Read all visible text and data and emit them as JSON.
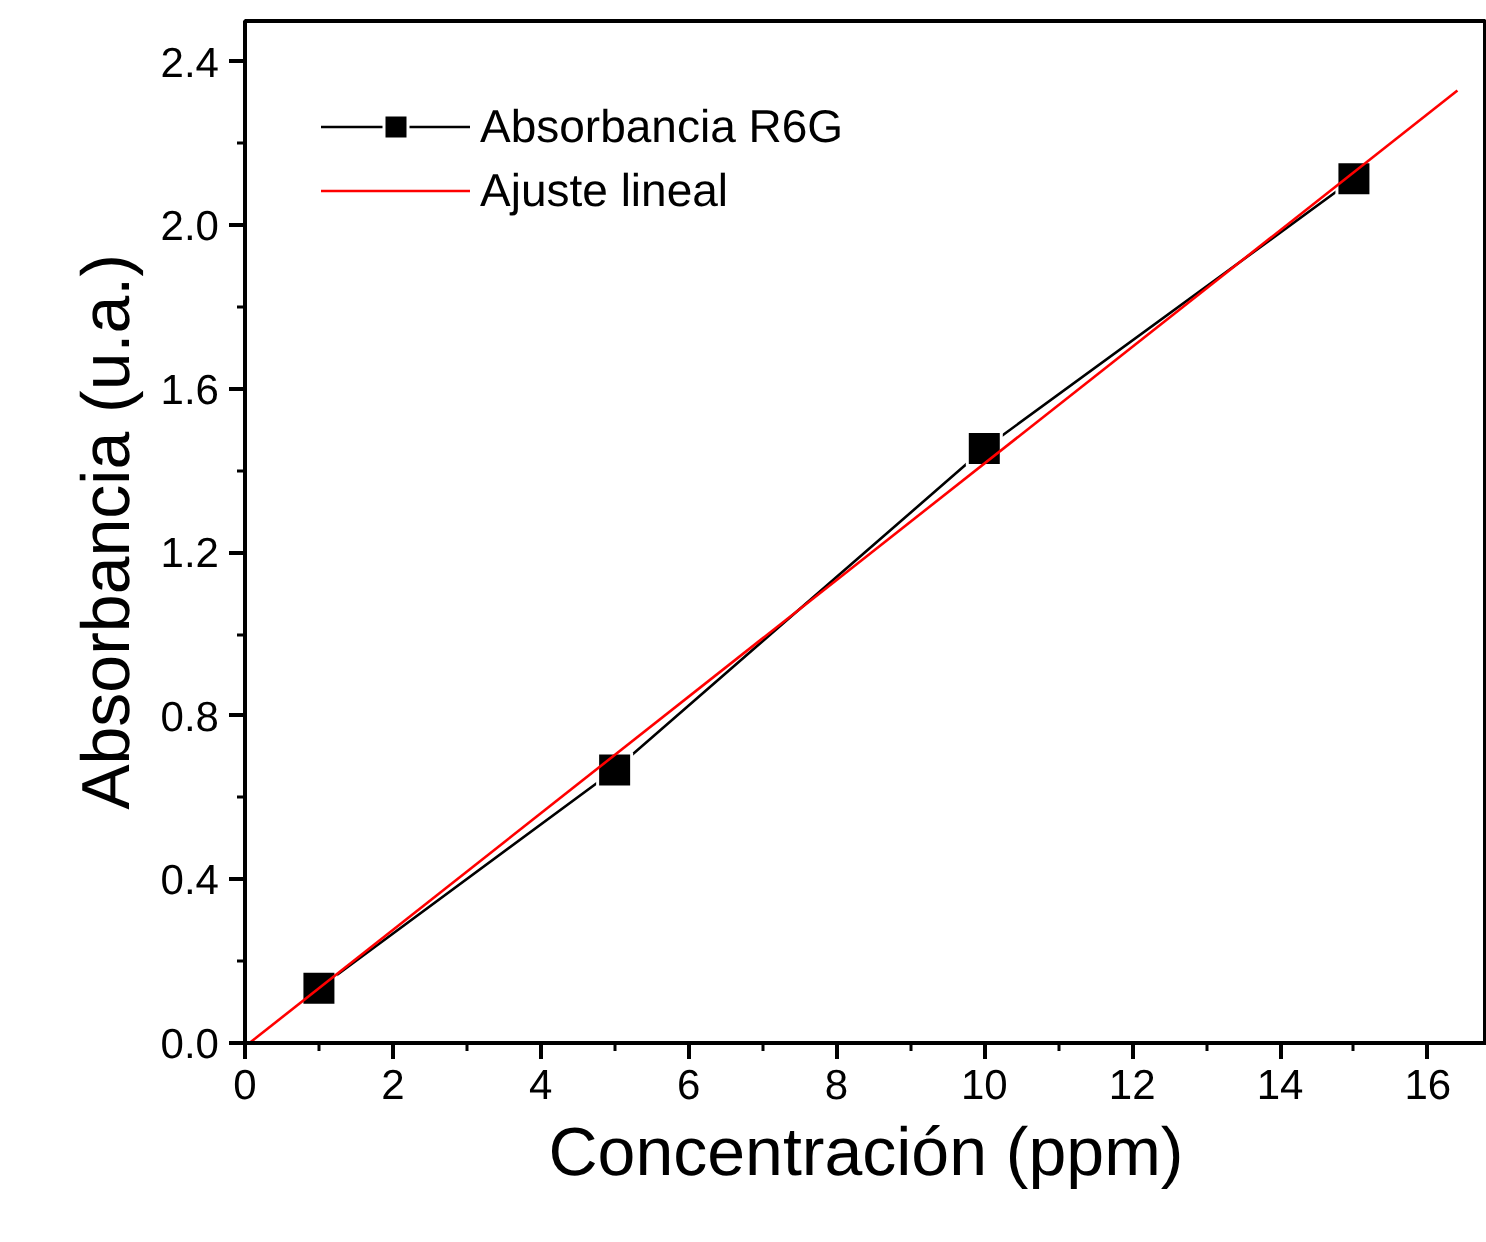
{
  "chart_data": {
    "type": "line",
    "xlabel": "Concentración (ppm)",
    "ylabel": "Absorbancia (u.a.)",
    "series": [
      {
        "name": "Absorbancia R6G",
        "color": "#000000",
        "x": [
          1,
          5,
          10,
          15
        ],
        "values": [
          0.134,
          0.668,
          1.454,
          2.114
        ],
        "marker": "square",
        "line_style": "solid"
      },
      {
        "name": "Ajuste lineal",
        "color": "#ff0000",
        "x": [
          0.06,
          16.4
        ],
        "values": [
          0.0,
          2.33
        ],
        "marker": "none",
        "line_style": "solid"
      }
    ],
    "xlim": [
      0,
      16.8
    ],
    "ylim": [
      0,
      2.5
    ],
    "xticks": [
      0,
      {
        "value": 1,
        "label": null
      },
      2,
      {
        "value": 3,
        "label": null
      },
      4,
      {
        "value": 5,
        "label": null
      },
      6,
      {
        "value": 7,
        "label": null
      },
      8,
      {
        "value": 9,
        "label": null
      },
      10,
      {
        "value": 11,
        "label": null
      },
      12,
      {
        "value": 13,
        "label": null
      },
      14,
      {
        "value": 15,
        "label": null
      },
      16
    ],
    "yticks": [
      {
        "value": 0,
        "label": "0.0"
      },
      {
        "value": 0.2,
        "label": null
      },
      {
        "value": 0.4,
        "label": "0.4"
      },
      {
        "value": 0.6,
        "label": null
      },
      {
        "value": 0.8,
        "label": "0.8"
      },
      {
        "value": 1.0,
        "label": null
      },
      {
        "value": 1.2,
        "label": "1.2"
      },
      {
        "value": 1.4,
        "label": null
      },
      {
        "value": 1.6,
        "label": "1.6"
      },
      {
        "value": 1.8,
        "label": null
      },
      {
        "value": 2.0,
        "label": "2.0"
      },
      {
        "value": 2.2,
        "label": null
      },
      {
        "value": 2.4,
        "label": "2.4"
      }
    ],
    "grid": false,
    "legend": "top left"
  }
}
